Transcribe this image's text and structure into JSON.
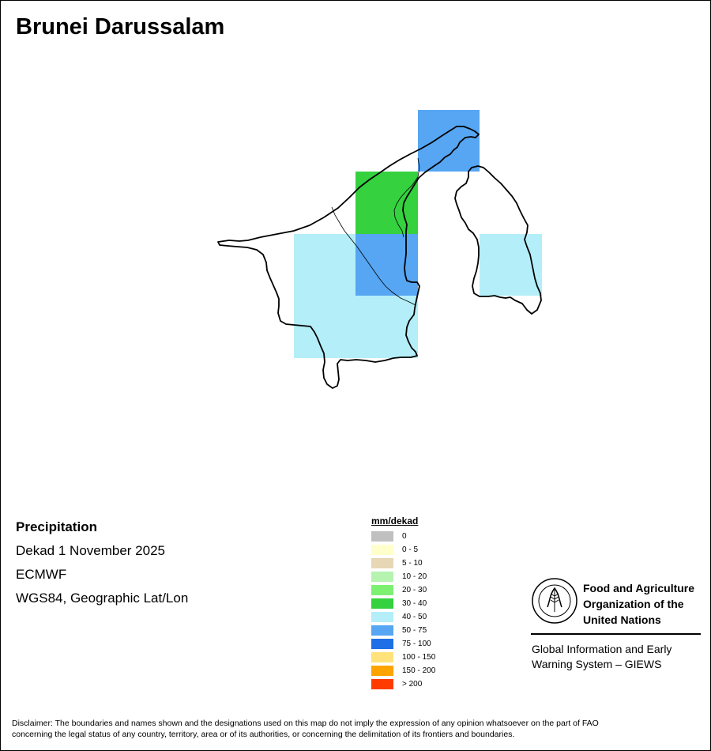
{
  "title": "Brunei Darussalam",
  "info": {
    "variable": "Precipitation",
    "period": "Dekad 1 November 2025",
    "source": "ECMWF",
    "projection": "WGS84, Geographic Lat/Lon"
  },
  "legend": {
    "title": "mm/dekad",
    "items": [
      {
        "label": "0",
        "color": "#c0c0c0"
      },
      {
        "label": "0 - 5",
        "color": "#ffffcc"
      },
      {
        "label": "5 - 10",
        "color": "#e8d7b5"
      },
      {
        "label": "10 - 20",
        "color": "#b6f3b0"
      },
      {
        "label": "20 - 30",
        "color": "#7df072"
      },
      {
        "label": "30 - 40",
        "color": "#35d13f"
      },
      {
        "label": "40 - 50",
        "color": "#b4eef8"
      },
      {
        "label": "50 - 75",
        "color": "#56a6f3"
      },
      {
        "label": "75 - 100",
        "color": "#1f6fe6"
      },
      {
        "label": "100 - 150",
        "color": "#ffe27a"
      },
      {
        "label": "150 - 200",
        "color": "#ffa300"
      },
      {
        "label": "> 200",
        "color": "#ff3b00"
      }
    ]
  },
  "grid_cells": [
    {
      "class": "50 - 75",
      "color": "#56a6f3"
    },
    {
      "class": "30 - 40",
      "color": "#35d13f"
    },
    {
      "class": "40 - 50",
      "color": "#b4eef8"
    },
    {
      "class": "50 - 75",
      "color": "#56a6f3"
    },
    {
      "class": "40 - 50",
      "color": "#b4eef8"
    },
    {
      "class": "40 - 50",
      "color": "#b4eef8"
    }
  ],
  "logo": {
    "org_line1": "Food and Agriculture",
    "org_line2": "Organization of the",
    "org_line3": "United Nations",
    "system_line1": "Global Information and Early",
    "system_line2": "Warning System – GIEWS",
    "emblem_text": "FAO",
    "emblem_motto": "FIAT PANIS"
  },
  "disclaimer": {
    "line1": "Disclaimer: The boundaries and names shown and the designations used on this map do not imply the expression of any opinion whatsoever on the part of FAO",
    "line2": "concerning the legal status of any country, territory, area or of its authorities, or concerning the delimitation of its frontiers and boundaries."
  }
}
